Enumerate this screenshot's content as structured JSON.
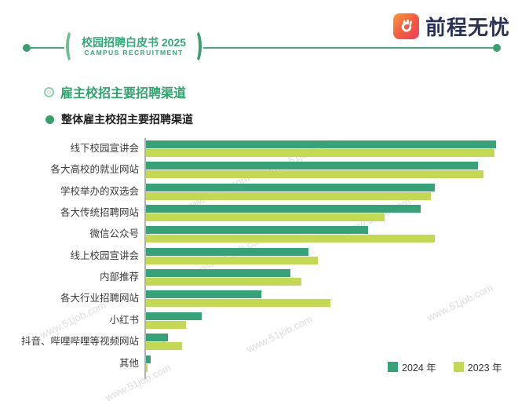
{
  "header": {
    "badge_title": "校园招聘白皮书 2025",
    "badge_subtitle": "CAMPUS RECRUITMENT",
    "logo_text": "前程无忧"
  },
  "section": {
    "title": "雇主校招主要招聘渠道",
    "subtitle": "整体雇主校招主要招聘渠道"
  },
  "watermark": {
    "text": "www.51job.com"
  },
  "legend": [
    {
      "label": "2024 年",
      "color": "#35a377"
    },
    {
      "label": "2023 年",
      "color": "#c3d952"
    }
  ],
  "colors": {
    "brand_green": "#2fa26e",
    "bar_2024": "#35a377",
    "bar_2023": "#c3d952",
    "logo_navy": "#2b3156",
    "logo_gradient_start": "#f99b3d",
    "logo_gradient_end": "#ee3f5f",
    "axis_gray": "#aeb2b6",
    "watermark_gray": "#dcdcdc"
  },
  "chart_data": {
    "type": "bar",
    "orientation": "horizontal",
    "title": "整体雇主校招主要招聘渠道",
    "xlabel": "",
    "ylabel": "",
    "xlim": [
      0,
      100
    ],
    "grid": false,
    "legend_position": "bottom-right",
    "value_note": "axis unlabeled in source; values estimated as percent of plot width",
    "categories": [
      "线下校园宣讲会",
      "各大高校的就业网站",
      "学校举办的双选会",
      "各大传统招聘网站",
      "微信公众号",
      "线上校园宣讲会",
      "内部推荐",
      "各大行业招聘网站",
      "小红书",
      "抖音、哔哩哔哩等视频网站",
      "其他"
    ],
    "series": [
      {
        "name": "2024 年",
        "color": "#35a377",
        "values": [
          97,
          92,
          80,
          76,
          61.5,
          45,
          40,
          32,
          15.5,
          6,
          1.2
        ]
      },
      {
        "name": "2023 年",
        "color": "#c3d952",
        "values": [
          96.5,
          93.5,
          79,
          66,
          80,
          47.5,
          43,
          51,
          11,
          10,
          0.5
        ]
      }
    ]
  }
}
